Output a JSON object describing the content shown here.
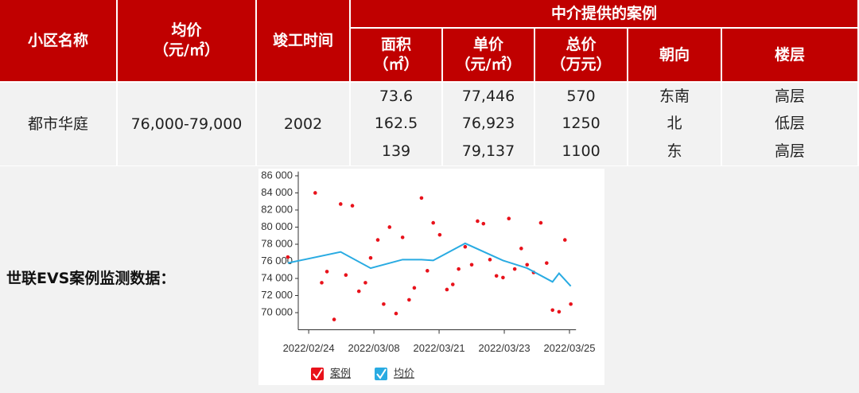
{
  "table": {
    "group_header": "中介提供的案例",
    "columns": [
      {
        "name": "小区名称"
      },
      {
        "name": "均价",
        "unit": "（元/㎡）"
      },
      {
        "name": "竣工时间"
      },
      {
        "name": "面积",
        "unit": "（㎡）"
      },
      {
        "name": "单价",
        "unit": "（元/㎡）"
      },
      {
        "name": "总价",
        "unit": "（万元）"
      },
      {
        "name": "朝向"
      },
      {
        "name": "楼层"
      }
    ],
    "project": {
      "name": "都市华庭",
      "price": "76,000-79,000",
      "year": 2002
    },
    "cases": [
      [
        73.6,
        "77,446",
        570,
        "东南",
        "高层"
      ],
      [
        162.5,
        "76,923",
        1250,
        "北",
        "低层"
      ],
      [
        139,
        "79,137",
        1100,
        "东",
        "高层"
      ]
    ],
    "footer_label": "世联EVS案例监测数据："
  },
  "chart_data": {
    "type": "scatter",
    "xlim": [
      -0.16,
      4.1
    ],
    "ylim": [
      68000,
      86500
    ],
    "xticks": [
      {
        "value": 0,
        "label": "2022/02/24"
      },
      {
        "value": 1,
        "label": "2022/03/08"
      },
      {
        "value": 2,
        "label": "2022/03/21"
      },
      {
        "value": 3,
        "label": "2022/03/23"
      },
      {
        "value": 4,
        "label": "2022/03/25"
      }
    ],
    "yticks": [
      {
        "value": 70000,
        "label": "70 000"
      },
      {
        "value": 72000,
        "label": "72 000"
      },
      {
        "value": 74000,
        "label": "74 000"
      },
      {
        "value": 76000,
        "label": "76 000"
      },
      {
        "value": 78000,
        "label": "78 000"
      },
      {
        "value": 80000,
        "label": "80 000"
      },
      {
        "value": 82000,
        "label": "82 000"
      },
      {
        "value": 84000,
        "label": "84 000"
      },
      {
        "value": 86000,
        "label": "86 000"
      }
    ],
    "series": [
      {
        "name": "案例",
        "type": "scatter",
        "color": "#e8121b",
        "x": [
          -0.32,
          0.1,
          0.2,
          0.28,
          0.39,
          0.49,
          0.57,
          0.67,
          0.77,
          0.87,
          0.95,
          1.06,
          1.15,
          1.24,
          1.34,
          1.44,
          1.54,
          1.62,
          1.73,
          1.82,
          1.91,
          2.01,
          2.12,
          2.21,
          2.3,
          2.4,
          2.5,
          2.59,
          2.68,
          2.78,
          2.88,
          2.98,
          3.07,
          3.16,
          3.26,
          3.35,
          3.45,
          3.56,
          3.65,
          3.74,
          3.84,
          3.93,
          4.02
        ],
        "values": [
          76500,
          84000,
          73500,
          74800,
          69200,
          82700,
          74400,
          82500,
          72500,
          73500,
          76400,
          78500,
          71000,
          80000,
          69900,
          78800,
          71500,
          72900,
          83400,
          74900,
          80500,
          79100,
          72700,
          73300,
          75100,
          77700,
          75600,
          80700,
          80400,
          76200,
          74300,
          74100,
          81000,
          75100,
          77500,
          75600,
          74700,
          80500,
          75800,
          70300,
          70100,
          78500,
          71000
        ]
      },
      {
        "name": "均价",
        "type": "line",
        "color": "#29abe2",
        "x": [
          -0.32,
          0.49,
          0.95,
          1.44,
          1.73,
          1.91,
          2.4,
          2.98,
          3.35,
          3.74,
          3.84,
          4.02
        ],
        "values": [
          75800,
          77100,
          75200,
          76200,
          76200,
          76100,
          78100,
          76100,
          75200,
          73600,
          74600,
          73100
        ]
      }
    ]
  }
}
